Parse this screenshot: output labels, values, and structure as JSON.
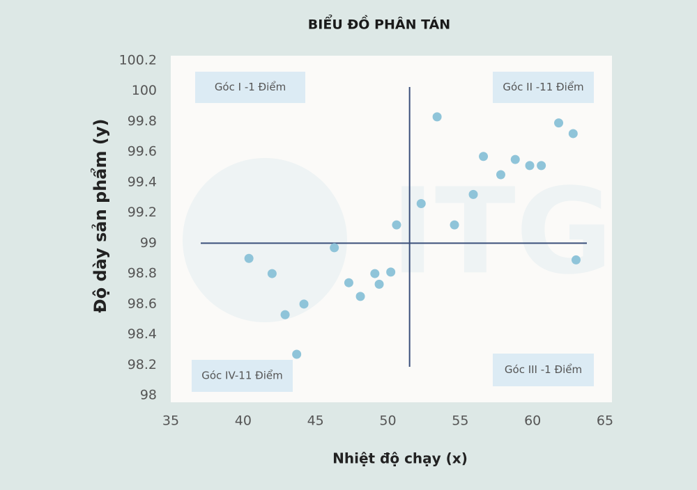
{
  "chart_data": {
    "type": "scatter",
    "title": "BIỂU ĐỒ PHÂN TÁN",
    "x_label": "Nhiệt độ chạy (x)",
    "y_label": "Độ dày sản phẩm (y)",
    "x": [
      40.4,
      42.0,
      42.9,
      44.2,
      43.7,
      46.3,
      47.3,
      48.1,
      49.1,
      49.4,
      50.2,
      50.6,
      52.3,
      53.4,
      54.6,
      55.9,
      56.6,
      57.8,
      58.8,
      59.8,
      60.6,
      61.8,
      62.8,
      63.0
    ],
    "values": [
      98.9,
      98.8,
      98.53,
      98.6,
      98.27,
      98.97,
      98.74,
      98.65,
      98.8,
      98.73,
      98.81,
      99.12,
      99.26,
      99.83,
      99.12,
      99.32,
      99.57,
      99.45,
      99.55,
      99.51,
      99.51,
      99.79,
      99.72,
      98.89
    ],
    "color": "#8fc4d9",
    "xlim": [
      35,
      65
    ],
    "xticks": [
      35,
      40,
      45,
      50,
      55,
      60,
      65
    ],
    "ylim": [
      98,
      100.2
    ],
    "yticks": [
      98,
      98.2,
      98.4,
      98.6,
      98.8,
      99,
      99.2,
      99.4,
      99.6,
      99.8,
      100,
      100.2
    ],
    "vline": 51.5,
    "hline": 99,
    "annotations": [
      "Góc I -1 Điểm",
      "Góc II -11 Điểm",
      "Góc III -1 Điểm",
      "Góc IV-11 Điểm"
    ],
    "watermark": "ITG"
  }
}
